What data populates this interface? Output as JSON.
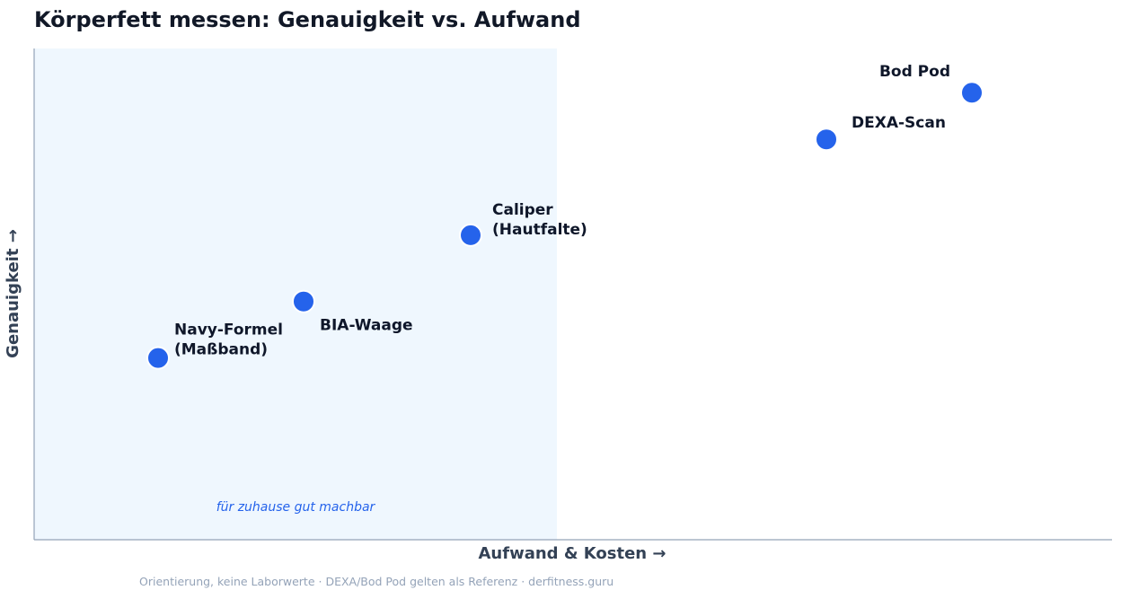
{
  "chart_data": {
    "type": "scatter",
    "title": "Körperfett messen: Genauigkeit vs. Aufwand",
    "xlabel": "Aufwand & Kosten",
    "ylabel": "Genauigkeit",
    "xlim": [
      0,
      10
    ],
    "ylim": [
      0,
      10
    ],
    "grid": false,
    "legend": "none",
    "points": [
      {
        "label": [
          "Navy-Formel",
          "(Maßband)"
        ],
        "x": 1.15,
        "y": 3.7
      },
      {
        "label": [
          "BIA-Waage"
        ],
        "x": 2.5,
        "y": 4.85
      },
      {
        "label": [
          "Caliper",
          "(Hautfalte)"
        ],
        "x": 4.05,
        "y": 6.2
      },
      {
        "label": [
          "Bod Pod"
        ],
        "x": 7.35,
        "y": 8.15
      },
      {
        "label": [
          "DEXA-Scan"
        ],
        "x": 8.7,
        "y": 9.1
      }
    ],
    "region": {
      "label": "für zuhause gut machbar",
      "x_from": 0,
      "x_to": 4.85
    },
    "footnote": "Orientierung, keine Laborwerte · DEXA/Bod Pod gelten als Referenz · derfitness.guru"
  },
  "colors": {
    "point": "#2563eb",
    "point_stroke": "#ffffff",
    "region_fill": "#eff7fe",
    "axis": "#94a3b8",
    "title": "#111827",
    "label": "#0f172a",
    "region_label": "#2563eb",
    "footnote": "#94a3b8"
  }
}
